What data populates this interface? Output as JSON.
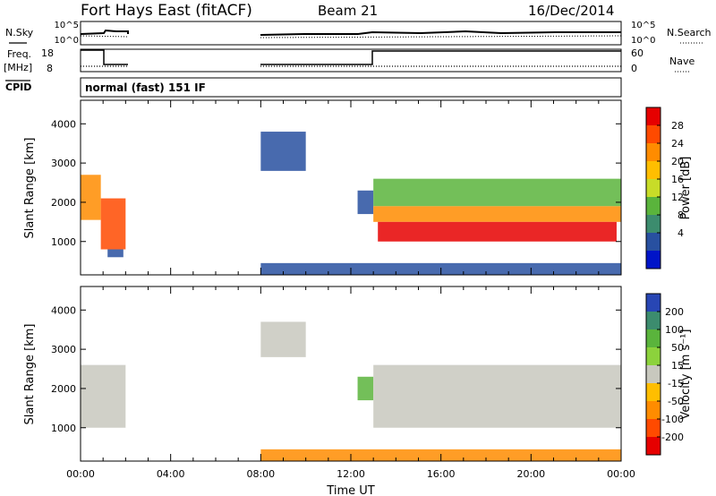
{
  "header": {
    "station": "Fort Hays East (fitACF)",
    "beam": "Beam 21",
    "date": "16/Dec/2014"
  },
  "params": {
    "nsky_label": "N.Sky",
    "nsky_ticks": [
      "10^5",
      "10^0"
    ],
    "nsearch_label": "N.Search",
    "nsearch_ticks": [
      "10^5",
      "10^0"
    ],
    "freq_label": "Freq.",
    "freq_unit": "[MHz]",
    "freq_ticks": [
      "18",
      "8"
    ],
    "nave_label": "Nave",
    "nave_ticks": [
      "60",
      "0"
    ],
    "cpid_label": "CPID",
    "cpid_text": "normal (fast) 151 IF"
  },
  "colors": {
    "velocity_gray": "#c8c8be"
  },
  "chart_data": [
    {
      "type": "heatmap",
      "name": "power",
      "ylabel": "Slant Range [km]",
      "xlabel": "",
      "ylim": [
        150,
        4600
      ],
      "xlim": [
        0,
        24
      ],
      "yticks": [
        "4000",
        "3000",
        "2000",
        "1000"
      ],
      "colorbar": {
        "label": "Power [dB]",
        "ticks": [
          "28",
          "24",
          "20",
          "16",
          "12",
          "8",
          "4"
        ],
        "colors": [
          "#e60000",
          "#ff4a00",
          "#ff8c00",
          "#ffbe00",
          "#c8dc28",
          "#5ab43c",
          "#3c8c6e",
          "#2850a0",
          "#0014c8"
        ]
      },
      "regions": [
        {
          "t0": 0.0,
          "t1": 0.9,
          "r0": 1550,
          "r1": 2700,
          "color": "#ff8c00"
        },
        {
          "t0": 0.9,
          "t1": 2.0,
          "r0": 800,
          "r1": 2100,
          "color": "#ff4a00"
        },
        {
          "t0": 1.2,
          "t1": 1.9,
          "r0": 600,
          "r1": 800,
          "color": "#2850a0"
        },
        {
          "t0": 8.0,
          "t1": 10.0,
          "r0": 2800,
          "r1": 3800,
          "color": "#2850a0"
        },
        {
          "t0": 8.0,
          "t1": 24.0,
          "r0": 150,
          "r1": 450,
          "color": "#2850a0"
        },
        {
          "t0": 12.3,
          "t1": 13.0,
          "r0": 1700,
          "r1": 2300,
          "color": "#2850a0"
        },
        {
          "t0": 13.0,
          "t1": 24.0,
          "r0": 1900,
          "r1": 2600,
          "color": "#5ab43c"
        },
        {
          "t0": 13.0,
          "t1": 24.0,
          "r0": 1500,
          "r1": 1900,
          "color": "#ff8c00"
        },
        {
          "t0": 13.2,
          "t1": 23.8,
          "r0": 1000,
          "r1": 1500,
          "color": "#e60000"
        }
      ]
    },
    {
      "type": "heatmap",
      "name": "velocity",
      "ylabel": "Slant Range [km]",
      "xlabel": "Time UT",
      "ylim": [
        150,
        4600
      ],
      "xlim": [
        0,
        24
      ],
      "yticks": [
        "4000",
        "3000",
        "2000",
        "1000"
      ],
      "xticks": [
        "00:00",
        "04:00",
        "08:00",
        "12:00",
        "16:00",
        "20:00",
        "00:00"
      ],
      "colorbar": {
        "label": "Velocity [m s⁻¹]",
        "ticks": [
          "200",
          "100",
          "50",
          "15",
          "-15",
          "-50",
          "-100",
          "-200"
        ],
        "colors": [
          "#2846b4",
          "#3c8c6e",
          "#5ab43c",
          "#8cd23c",
          "#c8c8be",
          "#ffbe00",
          "#ff8c00",
          "#ff4a00",
          "#e60000"
        ]
      },
      "regions": [
        {
          "t0": 0.0,
          "t1": 2.0,
          "r0": 1000,
          "r1": 2600,
          "color": "#c8c8be"
        },
        {
          "t0": 8.0,
          "t1": 10.0,
          "r0": 2800,
          "r1": 3700,
          "color": "#c8c8be"
        },
        {
          "t0": 8.0,
          "t1": 24.0,
          "r0": 150,
          "r1": 450,
          "color": "#ff8c00"
        },
        {
          "t0": 12.3,
          "t1": 13.0,
          "r0": 1700,
          "r1": 2300,
          "color": "#5ab43c"
        },
        {
          "t0": 13.0,
          "t1": 24.0,
          "r0": 1000,
          "r1": 2600,
          "color": "#c8c8be"
        }
      ]
    }
  ]
}
